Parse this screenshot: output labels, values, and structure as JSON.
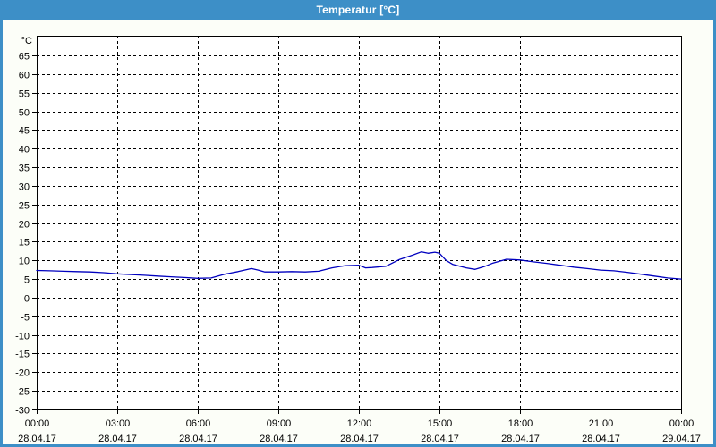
{
  "window": {
    "title": "Temperatur [°C]",
    "titlebar_color": "#3d8fc7",
    "frame_color": "#3d8fc7",
    "content_background": "#fcfef8"
  },
  "chart_data": {
    "type": "line",
    "title": "Temperatur [°C]",
    "y_unit_label": "°C",
    "ylim": [
      -30,
      65
    ],
    "y_tick_step": 5,
    "y_ticks": [
      65,
      60,
      55,
      50,
      45,
      40,
      35,
      30,
      25,
      20,
      15,
      10,
      5,
      0,
      -5,
      -10,
      -15,
      -20,
      -25,
      -30
    ],
    "x_range_hours": [
      0,
      24
    ],
    "x_ticks": [
      {
        "hour": 0,
        "time": "00:00",
        "date": "28.04.17"
      },
      {
        "hour": 3,
        "time": "03:00",
        "date": "28.04.17"
      },
      {
        "hour": 6,
        "time": "06:00",
        "date": "28.04.17"
      },
      {
        "hour": 9,
        "time": "09:00",
        "date": "28.04.17"
      },
      {
        "hour": 12,
        "time": "12:00",
        "date": "28.04.17"
      },
      {
        "hour": 15,
        "time": "15:00",
        "date": "28.04.17"
      },
      {
        "hour": 18,
        "time": "18:00",
        "date": "28.04.17"
      },
      {
        "hour": 21,
        "time": "21:00",
        "date": "28.04.17"
      },
      {
        "hour": 24,
        "time": "00:00",
        "date": "29.04.17"
      }
    ],
    "grid": {
      "style": "dashed",
      "color": "#000000",
      "plot_background": "#ffffff",
      "border_color": "#000000"
    },
    "legend": "none",
    "series": [
      {
        "name": "Temperatur",
        "color": "#0000bf",
        "x_hours": [
          0,
          0.5,
          1,
          1.5,
          2,
          2.5,
          3,
          3.5,
          4,
          4.5,
          5,
          5.5,
          6,
          6.5,
          7,
          7.5,
          8,
          8.25,
          8.5,
          9,
          9.5,
          10,
          10.5,
          11,
          11.5,
          12,
          12.25,
          12.5,
          13,
          13.5,
          14,
          14.33,
          14.58,
          14.83,
          15,
          15.25,
          15.5,
          16,
          16.33,
          16.66,
          17,
          17.5,
          18,
          18.5,
          19,
          19.5,
          20,
          20.5,
          21,
          21.5,
          22,
          22.5,
          23,
          23.5,
          24
        ],
        "values": [
          7.3,
          7.2,
          7.1,
          7.0,
          6.9,
          6.7,
          6.4,
          6.2,
          6.0,
          5.8,
          5.6,
          5.4,
          5.2,
          5.3,
          6.3,
          7.0,
          7.8,
          7.4,
          6.9,
          6.9,
          7.0,
          6.9,
          7.1,
          8.0,
          8.6,
          8.7,
          8.0,
          8.1,
          8.4,
          10.2,
          11.4,
          12.3,
          11.9,
          12.2,
          11.9,
          10.0,
          8.9,
          8.0,
          7.6,
          8.3,
          9.3,
          10.3,
          10.1,
          9.6,
          9.2,
          8.7,
          8.2,
          7.8,
          7.4,
          7.2,
          6.8,
          6.3,
          5.8,
          5.3,
          5.0
        ]
      }
    ]
  }
}
